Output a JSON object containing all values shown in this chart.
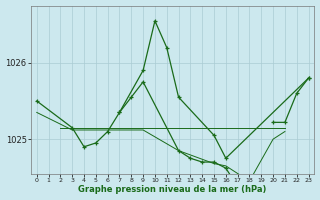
{
  "title": "Graphe pression niveau de la mer (hPa)",
  "bg_color": "#cce8ee",
  "grid_color": "#aaccd4",
  "line_color": "#1a6b1a",
  "xlim": [
    -0.5,
    23.5
  ],
  "ylim": [
    1024.55,
    1026.75
  ],
  "yticks": [
    1025,
    1026
  ],
  "xticks": [
    0,
    1,
    2,
    3,
    4,
    5,
    6,
    7,
    8,
    9,
    10,
    11,
    12,
    13,
    14,
    15,
    16,
    17,
    18,
    19,
    20,
    21,
    22,
    23
  ],
  "series1_x": [
    0,
    3,
    4,
    5,
    6,
    7,
    9,
    10,
    11,
    12,
    15,
    16,
    23
  ],
  "series1_y": [
    1025.5,
    1025.15,
    1024.9,
    1024.95,
    1025.1,
    1025.35,
    1025.9,
    1026.55,
    1026.2,
    1025.55,
    1025.05,
    1024.75,
    1025.8
  ],
  "series2_x": [
    2,
    3,
    4,
    5,
    6,
    9,
    12,
    13,
    14,
    15,
    16,
    20,
    21
  ],
  "series2_y": [
    1025.15,
    1025.15,
    1025.15,
    1025.15,
    1025.15,
    1025.15,
    1025.15,
    1025.15,
    1025.15,
    1025.15,
    1025.15,
    1025.15,
    1025.15
  ],
  "series3_x": [
    7,
    8,
    9,
    12,
    13,
    14,
    15,
    16,
    17,
    18
  ],
  "series3_y": [
    1025.35,
    1025.55,
    1025.75,
    1024.85,
    1024.75,
    1024.7,
    1024.7,
    1024.62,
    1024.38,
    1024.45
  ],
  "series4_x": [
    0,
    3,
    6,
    9,
    12,
    15,
    16,
    18,
    20,
    21
  ],
  "series4_y": [
    1025.35,
    1025.12,
    1025.12,
    1025.12,
    1024.85,
    1024.68,
    1024.65,
    1024.45,
    1025.0,
    1025.1
  ],
  "series5_x": [
    20,
    21,
    22,
    23
  ],
  "series5_y": [
    1025.22,
    1025.22,
    1025.6,
    1025.8
  ]
}
